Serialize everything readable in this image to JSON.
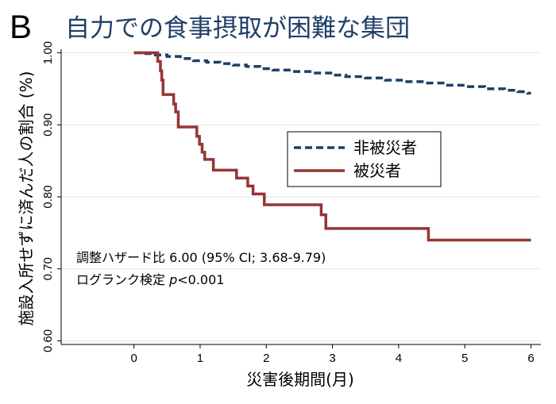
{
  "panel_letter": "B",
  "chart_data": {
    "type": "line",
    "title": "自力での食事摂取が困難な集団",
    "xlabel": "災害後期間(月)",
    "ylabel": "施設入所せずに済んだ人の割合 (%)",
    "xlim": [
      -1.1,
      6.15
    ],
    "ylim": [
      0.595,
      1.005
    ],
    "x_ticks": [
      0,
      1,
      2,
      3,
      4,
      5,
      6
    ],
    "x_tick_labels": [
      "0",
      "1",
      "2",
      "3",
      "4",
      "5",
      "6"
    ],
    "y_ticks": [
      0.6,
      0.7,
      0.8,
      0.9,
      1.0
    ],
    "y_tick_labels": [
      "0.60",
      "0.70",
      "0.80",
      "0.90",
      "1.00"
    ],
    "grid": "horizontal",
    "legend_position": "center-right",
    "series": [
      {
        "name": "非被災者",
        "color": "#1f3f67",
        "style": "dashed",
        "steps": [
          [
            0.0,
            1.0
          ],
          [
            0.1,
            0.999
          ],
          [
            0.3,
            0.997
          ],
          [
            0.5,
            0.995
          ],
          [
            0.7,
            0.992
          ],
          [
            0.9,
            0.989
          ],
          [
            1.1,
            0.987
          ],
          [
            1.3,
            0.985
          ],
          [
            1.5,
            0.983
          ],
          [
            1.7,
            0.981
          ],
          [
            1.9,
            0.978
          ],
          [
            2.1,
            0.976
          ],
          [
            2.4,
            0.974
          ],
          [
            2.7,
            0.972
          ],
          [
            3.0,
            0.969
          ],
          [
            3.2,
            0.967
          ],
          [
            3.5,
            0.965
          ],
          [
            3.8,
            0.962
          ],
          [
            4.1,
            0.96
          ],
          [
            4.4,
            0.958
          ],
          [
            4.7,
            0.955
          ],
          [
            5.0,
            0.953
          ],
          [
            5.3,
            0.95
          ],
          [
            5.6,
            0.948
          ],
          [
            5.8,
            0.946
          ],
          [
            5.95,
            0.944
          ],
          [
            6.0,
            0.944
          ]
        ]
      },
      {
        "name": "被災者",
        "color": "#943634",
        "style": "solid",
        "steps": [
          [
            0.0,
            1.0
          ],
          [
            0.36,
            0.988
          ],
          [
            0.4,
            0.975
          ],
          [
            0.42,
            0.962
          ],
          [
            0.44,
            0.942
          ],
          [
            0.6,
            0.929
          ],
          [
            0.63,
            0.918
          ],
          [
            0.67,
            0.897
          ],
          [
            0.95,
            0.884
          ],
          [
            0.99,
            0.873
          ],
          [
            1.03,
            0.862
          ],
          [
            1.07,
            0.852
          ],
          [
            1.2,
            0.837
          ],
          [
            1.55,
            0.826
          ],
          [
            1.72,
            0.815
          ],
          [
            1.8,
            0.804
          ],
          [
            1.97,
            0.789
          ],
          [
            2.83,
            0.775
          ],
          [
            2.9,
            0.756
          ],
          [
            4.45,
            0.74
          ],
          [
            6.0,
            0.74
          ]
        ]
      }
    ],
    "annotations": {
      "line1": "調整ハザード比 6.00 (95% CI; 3.68-9.79)",
      "line2_prefix": "ログランク検定 ",
      "line2_p": "p",
      "line2_suffix": "<0.001"
    }
  }
}
